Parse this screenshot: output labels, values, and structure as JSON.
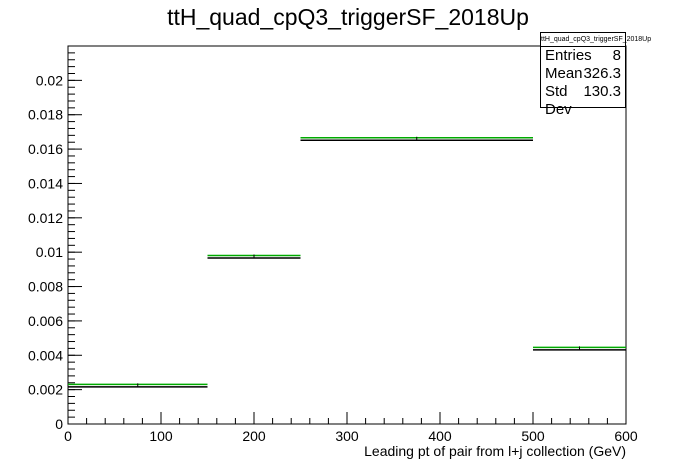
{
  "chart_data": {
    "type": "bar",
    "title": "ttH_quad_cpQ3_triggerSF_2018Up",
    "xlabel": "Leading pt of pair from l+j collection (GeV)",
    "ylabel": "",
    "xlim": [
      0,
      600
    ],
    "ylim": [
      0,
      0.022
    ],
    "xticks": [
      "0",
      "100",
      "200",
      "300",
      "400",
      "500",
      "600"
    ],
    "yticks": [
      "0",
      "0.002",
      "0.004",
      "0.006",
      "0.008",
      "0.01",
      "0.012",
      "0.014",
      "0.016",
      "0.018",
      "0.02"
    ],
    "bins": [
      {
        "low": 0,
        "high": 150,
        "value": 0.00225
      },
      {
        "low": 150,
        "high": 250,
        "value": 0.00975
      },
      {
        "low": 250,
        "high": 500,
        "value": 0.0166
      },
      {
        "low": 500,
        "high": 600,
        "value": 0.0044
      }
    ],
    "band_colors": [
      "#000000",
      "#00aa00"
    ],
    "grid": false,
    "legend": "none"
  },
  "stats": {
    "name": "ttH_quad_cpQ3_triggerSF_2018Up",
    "entries_label": "Entries",
    "entries_value": "8",
    "mean_label": "Mean",
    "mean_value": "326.3",
    "stddev_label": "Std Dev",
    "stddev_value": "130.3"
  }
}
